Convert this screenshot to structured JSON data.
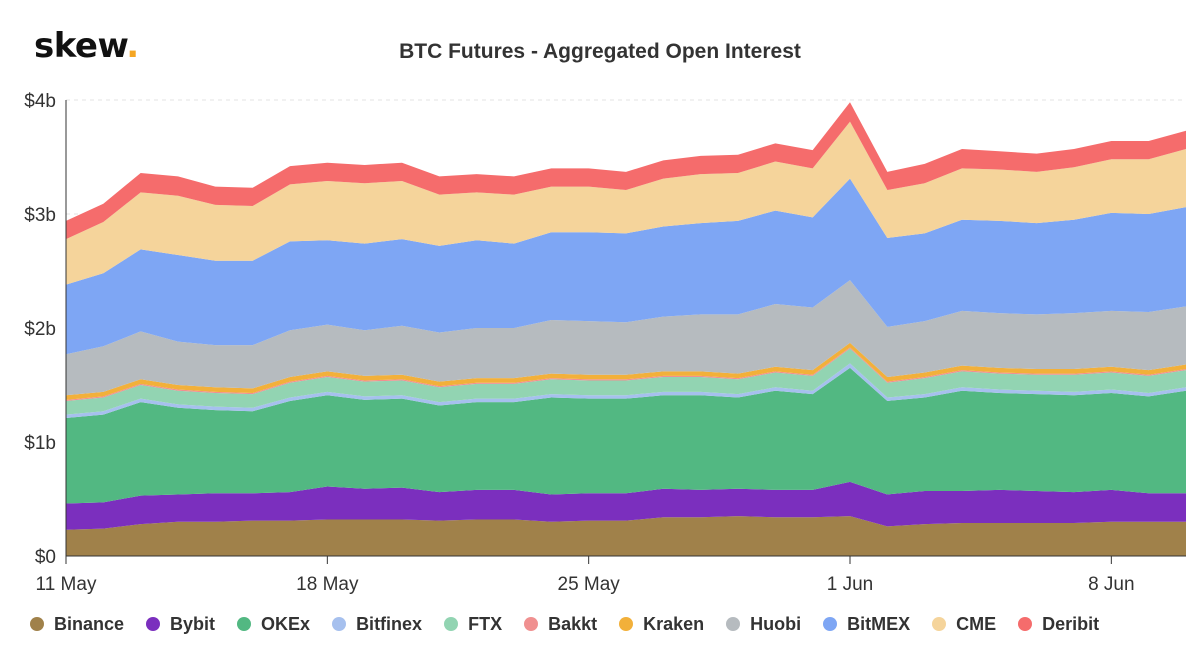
{
  "logo": {
    "text": "skew",
    "dot": "."
  },
  "chart_data": {
    "type": "area",
    "stacked": true,
    "title": "BTC Futures - Aggregated Open Interest",
    "xlabel": "",
    "ylabel": "",
    "y_unit": "$b",
    "ylim": [
      0,
      4
    ],
    "y_ticks": [
      "$0",
      "$1b",
      "$2b",
      "$3b",
      "$4b"
    ],
    "x_ticks": [
      {
        "label": "11 May",
        "index": 0
      },
      {
        "label": "18 May",
        "index": 7
      },
      {
        "label": "25 May",
        "index": 14
      },
      {
        "label": "1 Jun",
        "index": 21
      },
      {
        "label": "8 Jun",
        "index": 28
      }
    ],
    "x": [
      "11 May",
      "12 May",
      "13 May",
      "14 May",
      "15 May",
      "16 May",
      "17 May",
      "18 May",
      "19 May",
      "20 May",
      "21 May",
      "22 May",
      "23 May",
      "24 May",
      "25 May",
      "26 May",
      "27 May",
      "28 May",
      "29 May",
      "30 May",
      "31 May",
      "1 Jun",
      "2 Jun",
      "3 Jun",
      "4 Jun",
      "5 Jun",
      "6 Jun",
      "7 Jun",
      "8 Jun",
      "9 Jun",
      "10 Jun"
    ],
    "legend_position": "bottom",
    "series": [
      {
        "name": "Binance",
        "color": "#a0814a",
        "values": [
          0.23,
          0.24,
          0.28,
          0.3,
          0.3,
          0.31,
          0.31,
          0.32,
          0.32,
          0.32,
          0.31,
          0.32,
          0.32,
          0.3,
          0.31,
          0.31,
          0.34,
          0.34,
          0.35,
          0.34,
          0.34,
          0.35,
          0.26,
          0.28,
          0.29,
          0.29,
          0.29,
          0.29,
          0.3,
          0.3,
          0.3
        ]
      },
      {
        "name": "Bybit",
        "color": "#7b2fbe",
        "values": [
          0.23,
          0.23,
          0.25,
          0.24,
          0.25,
          0.24,
          0.25,
          0.29,
          0.27,
          0.28,
          0.25,
          0.26,
          0.26,
          0.24,
          0.24,
          0.24,
          0.25,
          0.24,
          0.24,
          0.24,
          0.24,
          0.3,
          0.28,
          0.29,
          0.28,
          0.29,
          0.28,
          0.27,
          0.28,
          0.25,
          0.25
        ]
      },
      {
        "name": "OKEx",
        "color": "#52b882",
        "values": [
          0.75,
          0.77,
          0.82,
          0.76,
          0.73,
          0.72,
          0.8,
          0.8,
          0.78,
          0.78,
          0.76,
          0.77,
          0.77,
          0.85,
          0.83,
          0.83,
          0.82,
          0.83,
          0.8,
          0.87,
          0.84,
          1.0,
          0.82,
          0.82,
          0.88,
          0.85,
          0.85,
          0.85,
          0.85,
          0.85,
          0.9
        ]
      },
      {
        "name": "Bitfinex",
        "color": "#a6c0ee",
        "values": [
          0.03,
          0.03,
          0.03,
          0.03,
          0.03,
          0.03,
          0.03,
          0.03,
          0.03,
          0.03,
          0.03,
          0.03,
          0.03,
          0.03,
          0.03,
          0.03,
          0.03,
          0.03,
          0.03,
          0.03,
          0.03,
          0.04,
          0.03,
          0.03,
          0.03,
          0.03,
          0.03,
          0.03,
          0.03,
          0.03,
          0.03
        ]
      },
      {
        "name": "FTX",
        "color": "#92d4b2",
        "values": [
          0.12,
          0.12,
          0.12,
          0.12,
          0.12,
          0.12,
          0.13,
          0.13,
          0.13,
          0.13,
          0.13,
          0.13,
          0.13,
          0.13,
          0.13,
          0.13,
          0.13,
          0.13,
          0.13,
          0.13,
          0.13,
          0.13,
          0.13,
          0.14,
          0.14,
          0.14,
          0.14,
          0.15,
          0.15,
          0.15,
          0.15
        ]
      },
      {
        "name": "Bakkt",
        "color": "#f09090",
        "values": [
          0.01,
          0.01,
          0.01,
          0.01,
          0.01,
          0.01,
          0.01,
          0.01,
          0.01,
          0.01,
          0.01,
          0.01,
          0.01,
          0.01,
          0.01,
          0.01,
          0.01,
          0.01,
          0.01,
          0.01,
          0.01,
          0.01,
          0.01,
          0.01,
          0.01,
          0.01,
          0.01,
          0.01,
          0.01,
          0.01,
          0.01
        ]
      },
      {
        "name": "Kraken",
        "color": "#f2b03a",
        "values": [
          0.04,
          0.04,
          0.04,
          0.04,
          0.04,
          0.04,
          0.04,
          0.04,
          0.04,
          0.04,
          0.04,
          0.04,
          0.04,
          0.04,
          0.04,
          0.04,
          0.04,
          0.04,
          0.04,
          0.04,
          0.04,
          0.04,
          0.04,
          0.04,
          0.04,
          0.04,
          0.04,
          0.04,
          0.04,
          0.04,
          0.04
        ]
      },
      {
        "name": "Huobi",
        "color": "#b6bbbf",
        "values": [
          0.36,
          0.4,
          0.42,
          0.38,
          0.37,
          0.38,
          0.41,
          0.41,
          0.4,
          0.43,
          0.43,
          0.44,
          0.44,
          0.47,
          0.47,
          0.46,
          0.48,
          0.5,
          0.52,
          0.55,
          0.55,
          0.55,
          0.44,
          0.45,
          0.48,
          0.48,
          0.48,
          0.49,
          0.49,
          0.51,
          0.51
        ]
      },
      {
        "name": "BitMEX",
        "color": "#7ea6f4",
        "values": [
          0.61,
          0.64,
          0.72,
          0.76,
          0.74,
          0.74,
          0.78,
          0.74,
          0.76,
          0.76,
          0.76,
          0.77,
          0.74,
          0.77,
          0.78,
          0.78,
          0.79,
          0.8,
          0.82,
          0.82,
          0.79,
          0.89,
          0.78,
          0.77,
          0.8,
          0.81,
          0.8,
          0.82,
          0.86,
          0.86,
          0.87
        ]
      },
      {
        "name": "CME",
        "color": "#f5d49b",
        "values": [
          0.4,
          0.45,
          0.5,
          0.52,
          0.49,
          0.48,
          0.5,
          0.52,
          0.53,
          0.51,
          0.45,
          0.42,
          0.43,
          0.4,
          0.4,
          0.38,
          0.42,
          0.43,
          0.42,
          0.43,
          0.43,
          0.5,
          0.42,
          0.44,
          0.45,
          0.45,
          0.45,
          0.46,
          0.47,
          0.48,
          0.51
        ]
      },
      {
        "name": "Deribit",
        "color": "#f56c6c",
        "values": [
          0.16,
          0.16,
          0.17,
          0.17,
          0.16,
          0.16,
          0.16,
          0.16,
          0.16,
          0.16,
          0.16,
          0.16,
          0.16,
          0.16,
          0.16,
          0.16,
          0.16,
          0.16,
          0.16,
          0.16,
          0.16,
          0.17,
          0.16,
          0.17,
          0.17,
          0.16,
          0.16,
          0.16,
          0.16,
          0.16,
          0.16
        ]
      }
    ]
  }
}
